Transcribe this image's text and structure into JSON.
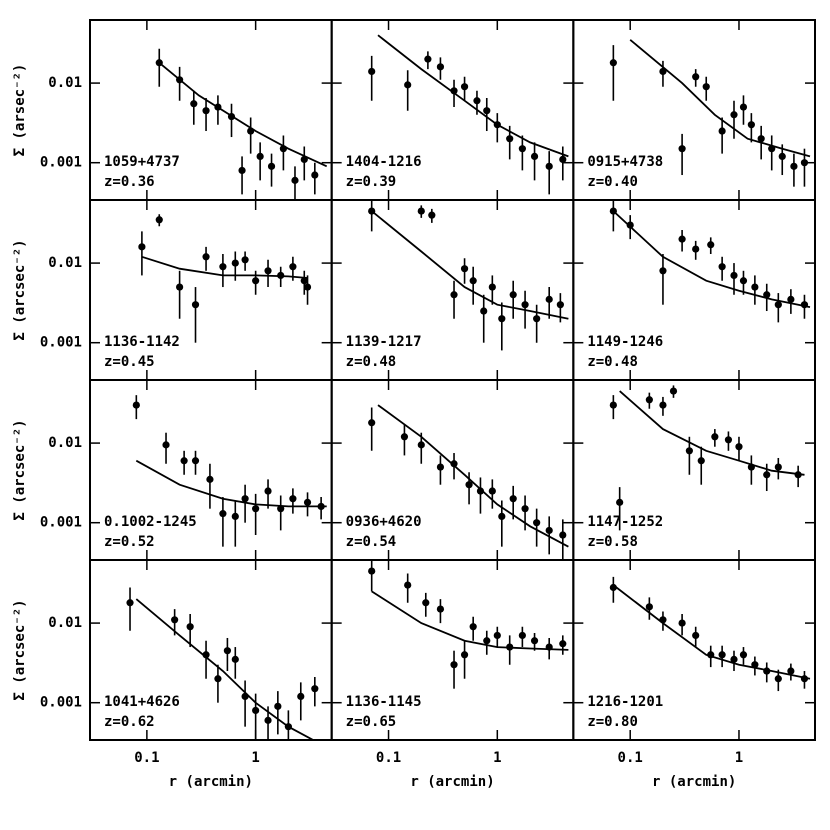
{
  "chart_data": [
    {
      "type": "scatter",
      "label": "1059+4737",
      "redshift": "z=0.36",
      "ylabel": "Σ (arsec⁻²)",
      "log_x": true,
      "log_y": true,
      "color": "#000000",
      "xlim": [
        0.03,
        5
      ],
      "ylim": [
        0.00034,
        0.062
      ],
      "xticks": [
        0.1,
        1
      ],
      "yticks": [
        0.001,
        0.01
      ],
      "x": [
        0.13,
        0.2,
        0.27,
        0.35,
        0.45,
        0.6,
        0.75,
        0.9,
        1.1,
        1.4,
        1.8,
        2.3,
        2.8,
        3.5
      ],
      "values": [
        0.018,
        0.011,
        0.0055,
        0.0045,
        0.005,
        0.0038,
        0.0008,
        0.0025,
        0.0012,
        0.0009,
        0.0015,
        0.0006,
        0.0011,
        0.0007
      ],
      "errors": [
        0.009,
        0.005,
        0.0025,
        0.002,
        0.002,
        0.0017,
        0.0004,
        0.0012,
        0.0006,
        0.0004,
        0.0007,
        0.0003,
        0.0005,
        0.0003
      ],
      "model_x": [
        0.13,
        0.3,
        1,
        2,
        4.5
      ],
      "model_values": [
        0.018,
        0.007,
        0.0025,
        0.0015,
        0.0009
      ]
    },
    {
      "type": "scatter",
      "label": "1404-1216",
      "redshift": "z=0.39",
      "log_x": true,
      "log_y": true,
      "color": "#000000",
      "xlim": [
        0.03,
        5
      ],
      "ylim": [
        0.00034,
        0.062
      ],
      "xticks": [
        0.1,
        1
      ],
      "yticks": [
        0.001,
        0.01
      ],
      "x": [
        0.07,
        0.15,
        0.23,
        0.3,
        0.4,
        0.5,
        0.65,
        0.8,
        1,
        1.3,
        1.7,
        2.2,
        3,
        4
      ],
      "values": [
        0.014,
        0.0095,
        0.02,
        0.016,
        0.008,
        0.009,
        0.006,
        0.0045,
        0.003,
        0.002,
        0.0015,
        0.0012,
        0.0009,
        0.0011
      ],
      "errors": [
        0.008,
        0.005,
        0.005,
        0.005,
        0.003,
        0.003,
        0.002,
        0.002,
        0.0012,
        0.0009,
        0.0007,
        0.0006,
        0.0005,
        0.0005
      ],
      "model_x": [
        0.08,
        0.2,
        0.5,
        1,
        2,
        4.5
      ],
      "model_values": [
        0.04,
        0.015,
        0.006,
        0.003,
        0.0018,
        0.0012
      ]
    },
    {
      "type": "scatter",
      "label": "0915+4738",
      "redshift": "z=0.40",
      "log_x": true,
      "log_y": true,
      "color": "#000000",
      "xlim": [
        0.03,
        5
      ],
      "ylim": [
        0.00034,
        0.062
      ],
      "xticks": [
        0.1,
        1
      ],
      "yticks": [
        0.001,
        0.01
      ],
      "x": [
        0.07,
        0.2,
        0.3,
        0.4,
        0.5,
        0.7,
        0.9,
        1.1,
        1.3,
        1.6,
        2,
        2.5,
        3.2,
        4
      ],
      "values": [
        0.018,
        0.014,
        0.0015,
        0.012,
        0.009,
        0.0025,
        0.004,
        0.005,
        0.003,
        0.002,
        0.0015,
        0.0012,
        0.0009,
        0.001
      ],
      "errors": [
        0.012,
        0.005,
        0.0008,
        0.003,
        0.003,
        0.0012,
        0.002,
        0.002,
        0.0012,
        0.0009,
        0.0007,
        0.0005,
        0.0004,
        0.0005
      ],
      "model_x": [
        0.1,
        0.3,
        0.6,
        1.2,
        2.5,
        4.5
      ],
      "model_values": [
        0.035,
        0.01,
        0.004,
        0.002,
        0.0015,
        0.0012
      ]
    },
    {
      "type": "scatter",
      "label": "1136-1142",
      "redshift": "z=0.45",
      "ylabel": "Σ (arcsec⁻²)",
      "log_x": true,
      "log_y": true,
      "color": "#000000",
      "xlim": [
        0.03,
        5
      ],
      "ylim": [
        0.00034,
        0.062
      ],
      "xticks": [
        0.1,
        1
      ],
      "yticks": [
        0.001,
        0.01
      ],
      "x": [
        0.09,
        0.13,
        0.2,
        0.28,
        0.35,
        0.5,
        0.65,
        0.8,
        1,
        1.3,
        1.7,
        2.2,
        2.8,
        3
      ],
      "values": [
        0.016,
        0.035,
        0.005,
        0.003,
        0.012,
        0.009,
        0.01,
        0.011,
        0.006,
        0.008,
        0.007,
        0.009,
        0.006,
        0.005
      ],
      "errors": [
        0.009,
        0.006,
        0.003,
        0.002,
        0.004,
        0.004,
        0.004,
        0.003,
        0.002,
        0.003,
        0.002,
        0.003,
        0.002,
        0.002
      ],
      "model_x": [
        0.09,
        0.2,
        0.5,
        1,
        2,
        3
      ],
      "model_values": [
        0.012,
        0.0085,
        0.007,
        0.007,
        0.0068,
        0.0065
      ]
    },
    {
      "type": "scatter",
      "label": "1139-1217",
      "redshift": "z=0.48",
      "log_x": true,
      "log_y": true,
      "color": "#000000",
      "xlim": [
        0.03,
        5
      ],
      "ylim": [
        0.00034,
        0.062
      ],
      "xticks": [
        0.1,
        1
      ],
      "yticks": [
        0.001,
        0.01
      ],
      "x": [
        0.07,
        0.2,
        0.25,
        0.4,
        0.5,
        0.6,
        0.75,
        0.9,
        1.1,
        1.4,
        1.8,
        2.3,
        3,
        3.8
      ],
      "values": [
        0.045,
        0.045,
        0.04,
        0.004,
        0.0085,
        0.006,
        0.0025,
        0.005,
        0.002,
        0.004,
        0.003,
        0.002,
        0.0035,
        0.003
      ],
      "errors": [
        0.02,
        0.008,
        0.008,
        0.002,
        0.003,
        0.003,
        0.0015,
        0.002,
        0.0012,
        0.002,
        0.0015,
        0.001,
        0.0015,
        0.0012
      ],
      "model_x": [
        0.07,
        0.2,
        0.5,
        1,
        2,
        4.5
      ],
      "model_values": [
        0.045,
        0.014,
        0.005,
        0.003,
        0.0025,
        0.002
      ]
    },
    {
      "type": "scatter",
      "label": "1149-1246",
      "redshift": "z=0.48",
      "log_x": true,
      "log_y": true,
      "color": "#000000",
      "xlim": [
        0.03,
        5
      ],
      "ylim": [
        0.00034,
        0.062
      ],
      "xticks": [
        0.1,
        1
      ],
      "yticks": [
        0.001,
        0.01
      ],
      "x": [
        0.07,
        0.1,
        0.2,
        0.3,
        0.4,
        0.55,
        0.7,
        0.9,
        1.1,
        1.4,
        1.8,
        2.3,
        3,
        4
      ],
      "values": [
        0.045,
        0.03,
        0.008,
        0.02,
        0.015,
        0.017,
        0.009,
        0.007,
        0.006,
        0.005,
        0.004,
        0.003,
        0.0035,
        0.003
      ],
      "errors": [
        0.02,
        0.01,
        0.005,
        0.006,
        0.004,
        0.004,
        0.003,
        0.003,
        0.002,
        0.002,
        0.0015,
        0.0012,
        0.0012,
        0.001
      ],
      "model_x": [
        0.07,
        0.2,
        0.5,
        1,
        2,
        4.5
      ],
      "model_values": [
        0.045,
        0.012,
        0.006,
        0.0045,
        0.0035,
        0.0028
      ]
    },
    {
      "type": "scatter",
      "label": "0.1002-1245",
      "redshift": "z=0.52",
      "ylabel": "Σ (arcsec⁻²)",
      "log_x": true,
      "log_y": true,
      "color": "#000000",
      "xlim": [
        0.03,
        5
      ],
      "ylim": [
        0.00034,
        0.062
      ],
      "xticks": [
        0.1,
        1
      ],
      "yticks": [
        0.001,
        0.01
      ],
      "x": [
        0.08,
        0.15,
        0.22,
        0.28,
        0.38,
        0.5,
        0.65,
        0.8,
        1,
        1.3,
        1.7,
        2.2,
        3,
        4
      ],
      "values": [
        0.03,
        0.0095,
        0.006,
        0.006,
        0.0035,
        0.0013,
        0.0012,
        0.002,
        0.0015,
        0.0025,
        0.0015,
        0.002,
        0.0018,
        0.0016
      ],
      "errors": [
        0.01,
        0.004,
        0.002,
        0.002,
        0.002,
        0.0008,
        0.0007,
        0.001,
        0.0008,
        0.001,
        0.0007,
        0.0007,
        0.0006,
        0.0005
      ],
      "model_x": [
        0.08,
        0.2,
        0.5,
        1,
        2,
        4.5
      ],
      "model_values": [
        0.006,
        0.003,
        0.002,
        0.0017,
        0.0016,
        0.0016
      ]
    },
    {
      "type": "scatter",
      "label": "0936+4620",
      "redshift": "z=0.54",
      "log_x": true,
      "log_y": true,
      "color": "#000000",
      "xlim": [
        0.03,
        5
      ],
      "ylim": [
        0.00034,
        0.062
      ],
      "xticks": [
        0.1,
        1
      ],
      "yticks": [
        0.001,
        0.01
      ],
      "x": [
        0.07,
        0.14,
        0.2,
        0.3,
        0.4,
        0.55,
        0.7,
        0.9,
        1.1,
        1.4,
        1.8,
        2.3,
        3,
        4
      ],
      "values": [
        0.018,
        0.012,
        0.0095,
        0.005,
        0.0055,
        0.003,
        0.0025,
        0.0025,
        0.0012,
        0.002,
        0.0015,
        0.001,
        0.0008,
        0.0007
      ],
      "errors": [
        0.01,
        0.005,
        0.004,
        0.002,
        0.002,
        0.0013,
        0.0012,
        0.001,
        0.0007,
        0.0009,
        0.0007,
        0.0005,
        0.0004,
        0.0004
      ],
      "model_x": [
        0.08,
        0.2,
        0.5,
        1,
        2,
        4.5
      ],
      "model_values": [
        0.03,
        0.012,
        0.004,
        0.0017,
        0.0009,
        0.0005
      ]
    },
    {
      "type": "scatter",
      "label": "1147-1252",
      "redshift": "z=0.58",
      "log_x": true,
      "log_y": true,
      "color": "#000000",
      "xlim": [
        0.03,
        5
      ],
      "ylim": [
        0.00034,
        0.062
      ],
      "xticks": [
        0.1,
        1
      ],
      "yticks": [
        0.001,
        0.01
      ],
      "x": [
        0.07,
        0.08,
        0.15,
        0.2,
        0.25,
        0.35,
        0.45,
        0.6,
        0.8,
        1,
        1.3,
        1.8,
        2.3,
        3.5
      ],
      "values": [
        0.03,
        0.0018,
        0.035,
        0.03,
        0.045,
        0.008,
        0.006,
        0.012,
        0.011,
        0.009,
        0.005,
        0.004,
        0.005,
        0.004
      ],
      "errors": [
        0.01,
        0.001,
        0.008,
        0.008,
        0.008,
        0.004,
        0.003,
        0.003,
        0.003,
        0.003,
        0.002,
        0.0015,
        0.0015,
        0.0012
      ],
      "model_x": [
        0.08,
        0.2,
        0.5,
        1,
        2,
        4
      ],
      "model_values": [
        0.045,
        0.015,
        0.008,
        0.006,
        0.0045,
        0.004
      ]
    },
    {
      "type": "scatter",
      "label": "1041+4626",
      "redshift": "z=0.62",
      "ylabel": "Σ (arcsec⁻²)",
      "xlabel": "r (arcmin)",
      "log_x": true,
      "log_y": true,
      "color": "#000000",
      "xlim": [
        0.03,
        5
      ],
      "ylim": [
        0.00034,
        0.062
      ],
      "xticks": [
        0.1,
        1
      ],
      "yticks": [
        0.001,
        0.01
      ],
      "x": [
        0.07,
        0.18,
        0.25,
        0.35,
        0.45,
        0.55,
        0.65,
        0.8,
        1,
        1.3,
        1.6,
        2,
        2.6,
        3.5
      ],
      "values": [
        0.018,
        0.011,
        0.009,
        0.004,
        0.002,
        0.0045,
        0.0035,
        0.0012,
        0.0008,
        0.0006,
        0.0009,
        0.0005,
        0.0012,
        0.0015
      ],
      "errors": [
        0.01,
        0.004,
        0.004,
        0.002,
        0.001,
        0.002,
        0.0015,
        0.0007,
        0.0005,
        0.0003,
        0.0005,
        0.0003,
        0.0006,
        0.0006
      ],
      "model_x": [
        0.08,
        0.2,
        0.5,
        1,
        2,
        4
      ],
      "model_values": [
        0.02,
        0.007,
        0.0025,
        0.001,
        0.0005,
        0.0003
      ]
    },
    {
      "type": "scatter",
      "label": "1136-1145",
      "redshift": "z=0.65",
      "xlabel": "r (arcmin)",
      "log_x": true,
      "log_y": true,
      "color": "#000000",
      "xlim": [
        0.03,
        5
      ],
      "ylim": [
        0.00034,
        0.062
      ],
      "xticks": [
        0.1,
        1
      ],
      "yticks": [
        0.001,
        0.01
      ],
      "x": [
        0.07,
        0.15,
        0.22,
        0.3,
        0.4,
        0.5,
        0.6,
        0.8,
        1,
        1.3,
        1.7,
        2.2,
        3,
        4
      ],
      "values": [
        0.045,
        0.03,
        0.018,
        0.015,
        0.003,
        0.004,
        0.009,
        0.006,
        0.007,
        0.005,
        0.007,
        0.006,
        0.005,
        0.0055
      ],
      "errors": [
        0.02,
        0.012,
        0.006,
        0.005,
        0.0015,
        0.002,
        0.003,
        0.002,
        0.002,
        0.002,
        0.002,
        0.0015,
        0.0015,
        0.0015
      ],
      "model_x": [
        0.07,
        0.2,
        0.5,
        1,
        2,
        4.5
      ],
      "model_values": [
        0.025,
        0.01,
        0.006,
        0.005,
        0.0048,
        0.0046
      ]
    },
    {
      "type": "scatter",
      "label": "1216-1201",
      "redshift": "z=0.80",
      "xlabel": "r (arcmin)",
      "log_x": true,
      "log_y": true,
      "color": "#000000",
      "xlim": [
        0.03,
        5
      ],
      "ylim": [
        0.00034,
        0.062
      ],
      "xticks": [
        0.1,
        1
      ],
      "yticks": [
        0.001,
        0.01
      ],
      "x": [
        0.07,
        0.15,
        0.2,
        0.3,
        0.4,
        0.55,
        0.7,
        0.9,
        1.1,
        1.4,
        1.8,
        2.3,
        3,
        4
      ],
      "values": [
        0.028,
        0.016,
        0.011,
        0.01,
        0.007,
        0.004,
        0.004,
        0.0035,
        0.004,
        0.003,
        0.0025,
        0.002,
        0.0025,
        0.002
      ],
      "errors": [
        0.01,
        0.005,
        0.003,
        0.003,
        0.002,
        0.0012,
        0.0012,
        0.001,
        0.001,
        0.0008,
        0.0007,
        0.0006,
        0.0006,
        0.0005
      ],
      "model_x": [
        0.07,
        0.2,
        0.5,
        1,
        2,
        4.5
      ],
      "model_values": [
        0.03,
        0.01,
        0.004,
        0.003,
        0.0025,
        0.002
      ]
    }
  ]
}
